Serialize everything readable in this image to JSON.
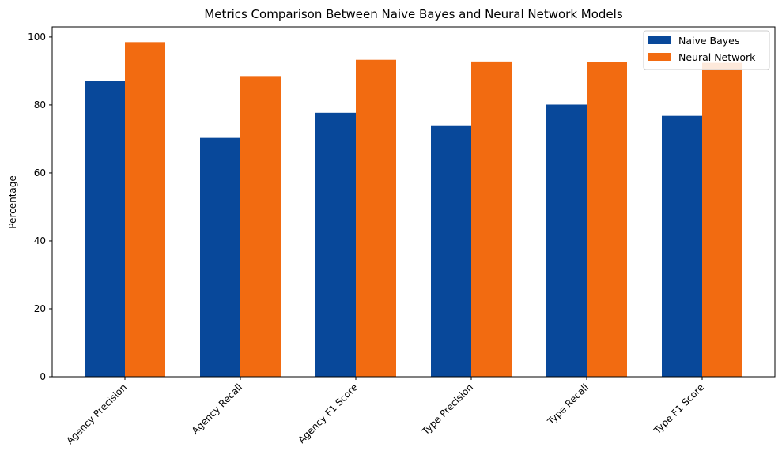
{
  "chart_data": {
    "type": "bar",
    "title": "Metrics Comparison Between Naive Bayes and Neural Network Models",
    "xlabel": "",
    "ylabel": "Percentage",
    "ylim": [
      0,
      103
    ],
    "yticks": [
      0,
      20,
      40,
      60,
      80,
      100
    ],
    "categories": [
      "Agency Precision",
      "Agency Recall",
      "Agency F1 Score",
      "Type Precision",
      "Type Recall",
      "Type F1 Score"
    ],
    "series": [
      {
        "name": "Naive Bayes",
        "color": "#08489a",
        "values": [
          87.0,
          70.3,
          77.7,
          74.0,
          80.1,
          76.8
        ]
      },
      {
        "name": "Neural Network",
        "color": "#f26b11",
        "values": [
          98.5,
          88.5,
          93.3,
          92.8,
          92.6,
          92.4
        ]
      }
    ],
    "legend_position": "top-right",
    "grid": false
  }
}
